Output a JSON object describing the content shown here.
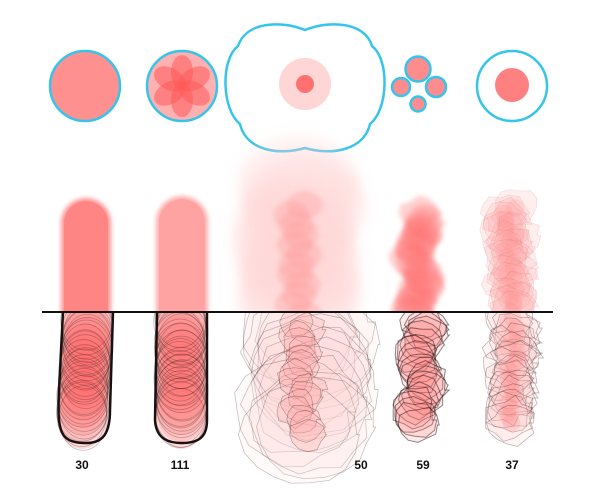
{
  "colors": {
    "fill": "#ff8a8a",
    "fill_dark": "#ff5f5f",
    "fill_pale": "#ffc9c9",
    "outline": "#35c4ec",
    "stroke": "#2a1a1a",
    "line": "#111111"
  },
  "brushes": [
    {
      "name": "solid-circle",
      "count": "30"
    },
    {
      "name": "flower",
      "count": "111"
    },
    {
      "name": "blob-soft",
      "count": "50"
    },
    {
      "name": "cluster",
      "count": "59"
    },
    {
      "name": "ring-dot",
      "count": "37"
    }
  ]
}
